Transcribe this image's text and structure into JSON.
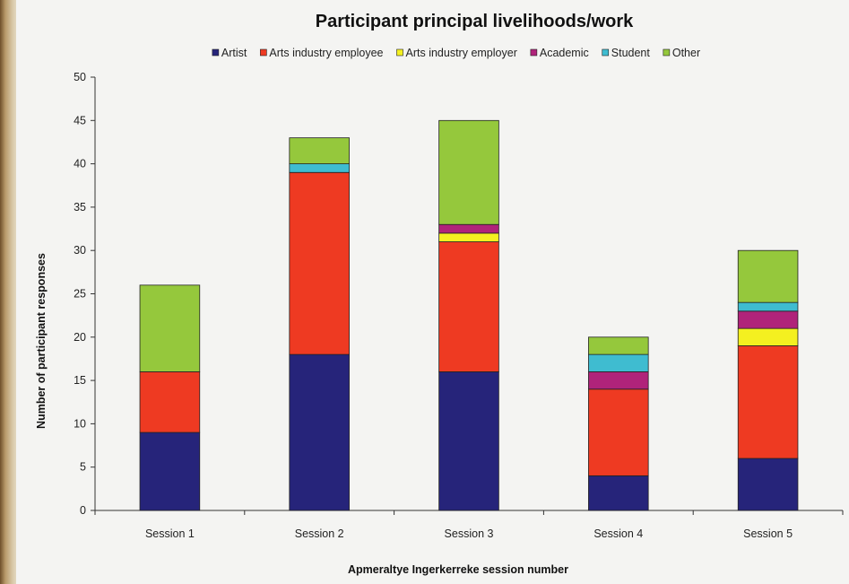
{
  "chart_data": {
    "type": "bar",
    "stacked": true,
    "title": "Participant principal livelihoods/work",
    "xlabel": "Apmeraltye Ingerkerreke session number",
    "ylabel": "Number of participant responses",
    "ylim": [
      0,
      50
    ],
    "yticks": [
      0,
      5,
      10,
      15,
      20,
      25,
      30,
      35,
      40,
      45,
      50
    ],
    "grid": false,
    "legend_position": "top",
    "categories": [
      "Session 1",
      "Session 2",
      "Session 3",
      "Session 4",
      "Session 5"
    ],
    "series": [
      {
        "name": "Artist",
        "color": "#26247a",
        "values": [
          9,
          18,
          16,
          4,
          6
        ]
      },
      {
        "name": "Arts industry employee",
        "color": "#ee3a22",
        "values": [
          7,
          21,
          15,
          10,
          13
        ]
      },
      {
        "name": "Arts industry employer",
        "color": "#f4f020",
        "values": [
          0,
          0,
          1,
          0,
          2
        ]
      },
      {
        "name": "Academic",
        "color": "#b0237a",
        "values": [
          0,
          0,
          1,
          2,
          2
        ]
      },
      {
        "name": "Student",
        "color": "#3fbcd0",
        "values": [
          0,
          1,
          0,
          2,
          1
        ]
      },
      {
        "name": "Other",
        "color": "#95c83c",
        "values": [
          10,
          3,
          12,
          2,
          6
        ]
      }
    ]
  }
}
